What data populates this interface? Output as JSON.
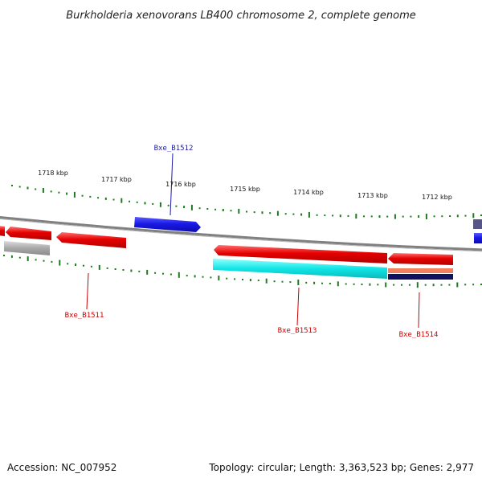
{
  "title": "Burkholderia xenovorans LB400 chromosome 2, complete genome",
  "footer": {
    "accession": "Accession: NC_007952",
    "summary": "Topology: circular; Length: 3,363,523 bp; Genes: 2,977"
  },
  "scale_labels": [
    "1718 kbp",
    "1717 kbp",
    "1716 kbp",
    "1715 kbp",
    "1714 kbp",
    "1713 kbp",
    "1712 kbp"
  ],
  "gene_labels": [
    {
      "text": "Bxe_B1512",
      "color": "#1a1aa6"
    },
    {
      "text": "Bxe_B1511",
      "color": "#cc0000"
    },
    {
      "text": "Bxe_B1513",
      "color": "#cc0000"
    },
    {
      "text": "Bxe_B1514",
      "color": "#cc0000"
    }
  ],
  "colors": {
    "forward_cds": "#1a1ae6",
    "reverse_cds": "#e60000",
    "rrna_cyan": "#11e5e5",
    "gray_feature": "#a8a8a8",
    "backbone": "#808080",
    "gc_tick": "#1f7a1f",
    "salmon": "#f08060",
    "navy": "#101060",
    "slate": "#555588"
  }
}
